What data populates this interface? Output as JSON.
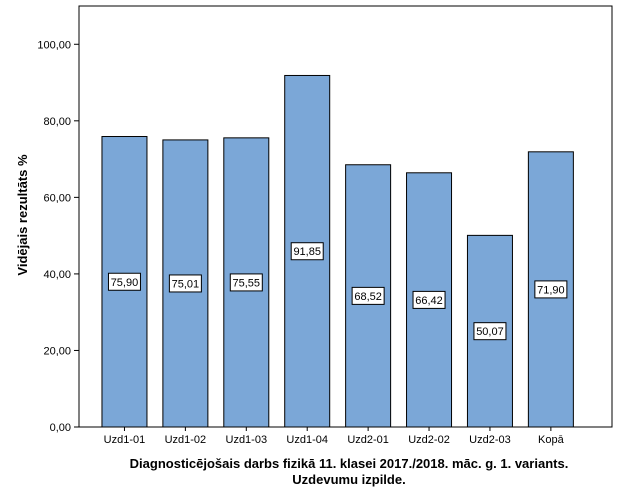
{
  "chart_data": {
    "type": "bar",
    "categories": [
      "Uzd1-01",
      "Uzd1-02",
      "Uzd1-03",
      "Uzd1-04",
      "Uzd2-01",
      "Uzd2-02",
      "Uzd2-03",
      "Kopā"
    ],
    "values": [
      75.9,
      75.01,
      75.55,
      91.85,
      68.52,
      66.42,
      50.07,
      71.9
    ],
    "data_labels": [
      "75,90",
      "75,01",
      "75,55",
      "91,85",
      "68,52",
      "66,42",
      "50,07",
      "71,90"
    ],
    "ylabel": "Vidējais rezultāts %",
    "xlabel_lines": [
      "Diagnosticējošais darbs fizikā 11. klasei 2017./2018. māc. g. 1. variants.",
      "Uzdevumu izpilde."
    ],
    "ylim": [
      0,
      110
    ],
    "yticks": [
      0,
      20,
      40,
      60,
      80,
      100
    ],
    "ytick_labels": [
      "0,00",
      "20,00",
      "40,00",
      "60,00",
      "80,00",
      "100,00"
    ],
    "bar_color": "#7BA7D7",
    "bar_edge_color": "#000000",
    "grid": false,
    "legend": "none"
  }
}
